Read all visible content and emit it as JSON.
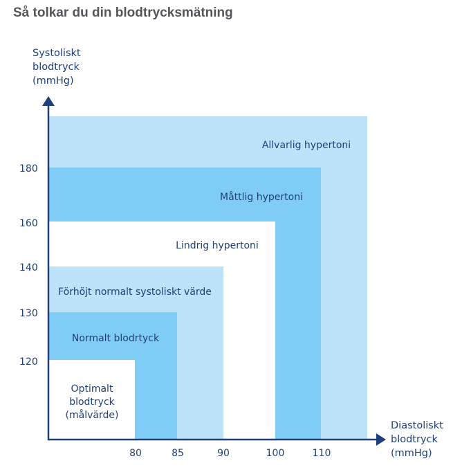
{
  "title": "Så tolkar du din blodtrycksmätning",
  "colors": {
    "light": "#bde3fa",
    "medium": "#7fcdf7",
    "white": "#ffffff",
    "axis": "#1f3f7a",
    "text": "#1f3f7a"
  },
  "y_axis": {
    "label_lines": [
      "Systoliskt",
      "blodtryck",
      "(mmHg)"
    ],
    "ticks": [
      "180",
      "160",
      "140",
      "130",
      "120"
    ]
  },
  "x_axis": {
    "label_lines": [
      "Diastoliskt",
      "blodtryck",
      "(mmHg)"
    ],
    "ticks": [
      "80",
      "85",
      "90",
      "100",
      "110"
    ]
  },
  "zones": [
    {
      "label_lines": [
        "Allvarlig hypertoni"
      ],
      "color": "#bde3fa"
    },
    {
      "label_lines": [
        "Måttlig hypertoni"
      ],
      "color": "#7fcdf7"
    },
    {
      "label_lines": [
        "Lindrig hypertoni"
      ],
      "color": "#ffffff"
    },
    {
      "label_lines": [
        "Förhöjt normalt systoliskt värde"
      ],
      "color": "#bde3fa"
    },
    {
      "label_lines": [
        "Normalt blodrtyck"
      ],
      "color": "#7fcdf7"
    },
    {
      "label_lines": [
        "Optimalt",
        "blodtryck",
        "(målvärde)"
      ],
      "color": "#ffffff"
    }
  ]
}
